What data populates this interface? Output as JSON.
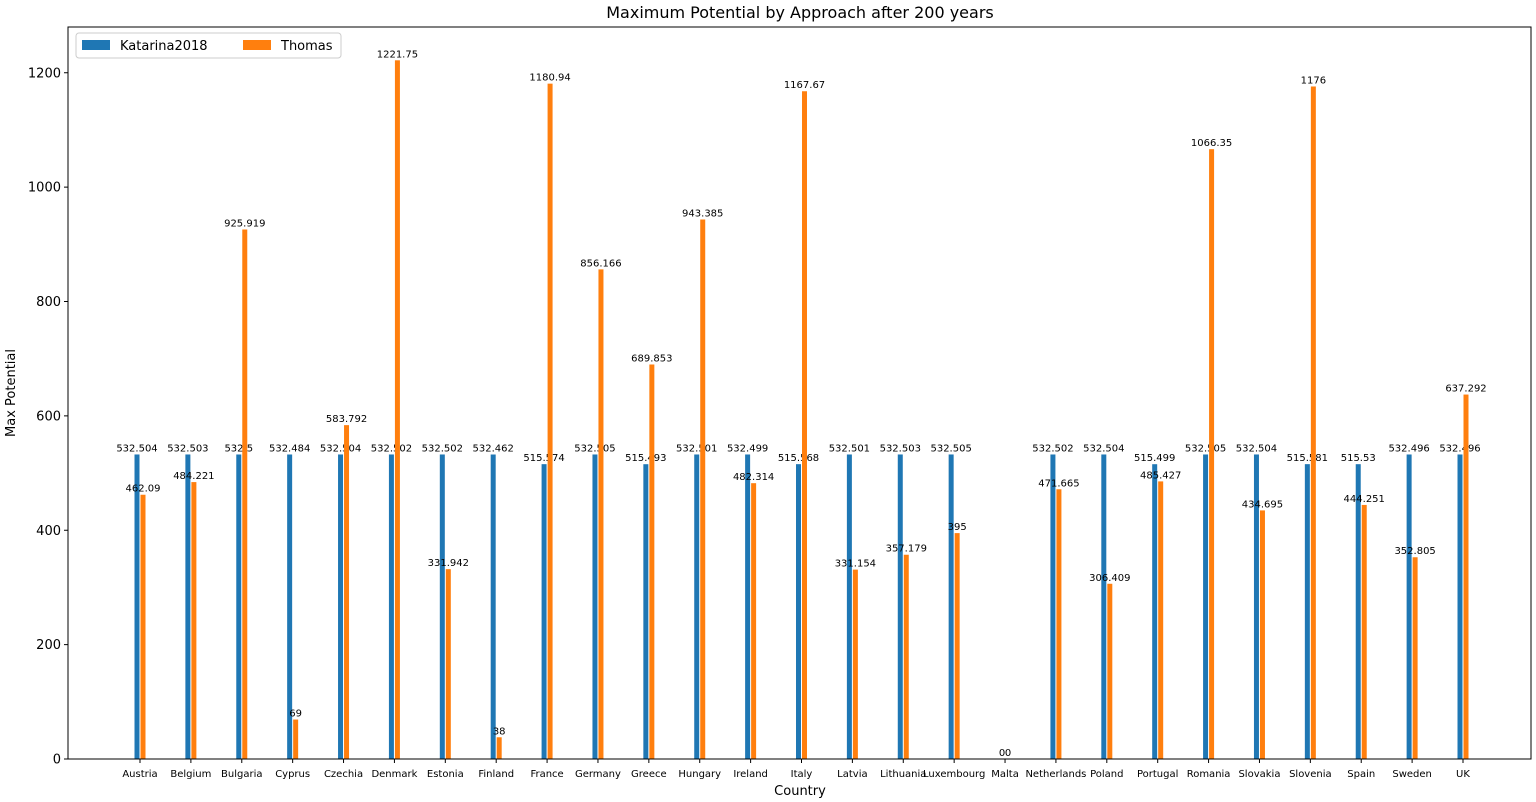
{
  "chart_data": {
    "type": "bar",
    "title": "Maximum Potential by Approach after 200 years",
    "xlabel": "Country",
    "ylabel": "Max Potential",
    "ylim": [
      0,
      1280
    ],
    "yticks": [
      0,
      200,
      400,
      600,
      800,
      1000,
      1200
    ],
    "grid": false,
    "legend_position": "top-left",
    "categories": [
      "Austria",
      "Belgium",
      "Bulgaria",
      "Cyprus",
      "Czechia",
      "Denmark",
      "Estonia",
      "Finland",
      "France",
      "Germany",
      "Greece",
      "Hungary",
      "Ireland",
      "Italy",
      "Latvia",
      "Lithuania",
      "Luxembourg",
      "Malta",
      "Netherlands",
      "Poland",
      "Portugal",
      "Romania",
      "Slovakia",
      "Slovenia",
      "Spain",
      "Sweden",
      "UK"
    ],
    "series": [
      {
        "name": "Katarina2018",
        "color": "#1f77b4",
        "values": [
          532.504,
          532.503,
          532.5,
          532.484,
          532.504,
          532.502,
          532.502,
          532.462,
          515.574,
          532.505,
          515.493,
          532.501,
          532.499,
          515.568,
          532.501,
          532.503,
          532.505,
          0,
          532.502,
          532.504,
          515.499,
          532.505,
          532.504,
          515.581,
          515.53,
          532.496,
          532.496
        ],
        "labels": [
          "532.504",
          "532.503",
          "532.5",
          "532.484",
          "532.504",
          "532.502",
          "532.502",
          "532.462",
          "515.574",
          "532.505",
          "515.493",
          "532.501",
          "532.499",
          "515.568",
          "532.501",
          "532.503",
          "532.505",
          "0",
          "532.502",
          "532.504",
          "515.499",
          "532.505",
          "532.504",
          "515.581",
          "515.53",
          "532.496",
          "532.496"
        ]
      },
      {
        "name": "Thomas",
        "color": "#ff7f0e",
        "values": [
          462.09,
          484.221,
          925.919,
          69,
          583.792,
          1221.75,
          331.942,
          38,
          1180.94,
          856.166,
          689.853,
          943.385,
          482.314,
          1167.67,
          331.154,
          357.179,
          395,
          0,
          471.665,
          306.409,
          485.427,
          1066.35,
          434.695,
          1176,
          444.251,
          352.805,
          637.292
        ],
        "labels": [
          "462.09",
          "484.221",
          "925.919",
          "69",
          "583.792",
          "1221.75",
          "331.942",
          "38",
          "1180.94",
          "856.166",
          "689.853",
          "943.385",
          "482.314",
          "1167.67",
          "331.154",
          "357.179",
          "395",
          "0",
          "471.665",
          "306.409",
          "485.427",
          "1066.35",
          "434.695",
          "1176",
          "444.251",
          "352.805",
          "637.292"
        ]
      }
    ]
  }
}
